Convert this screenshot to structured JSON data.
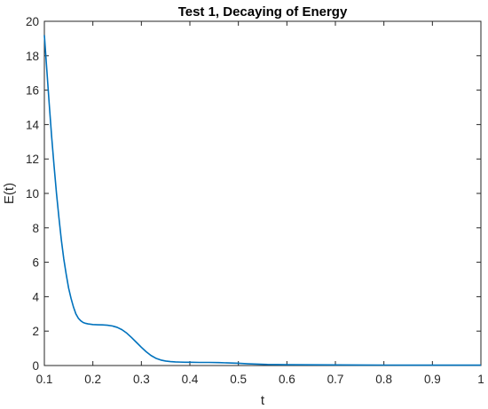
{
  "chart_data": {
    "type": "line",
    "title": "Test 1, Decaying of Energy",
    "xlabel": "t",
    "ylabel": "E(t)",
    "xlim": [
      0.1,
      1
    ],
    "ylim": [
      0,
      20
    ],
    "grid": false,
    "x_ticks": [
      "0.1",
      "0.2",
      "0.3",
      "0.4",
      "0.5",
      "0.6",
      "0.7",
      "0.8",
      "0.9",
      "1"
    ],
    "y_ticks": [
      "0",
      "2",
      "4",
      "6",
      "8",
      "10",
      "12",
      "14",
      "16",
      "18",
      "20"
    ],
    "colors": {
      "line": "#0072BD",
      "axis": "#262626"
    },
    "series": [
      {
        "x": [
          0.1,
          0.105,
          0.11,
          0.115,
          0.12,
          0.125,
          0.13,
          0.135,
          0.14,
          0.145,
          0.15,
          0.155,
          0.16,
          0.165,
          0.17,
          0.175,
          0.18,
          0.185,
          0.19,
          0.195,
          0.2,
          0.21,
          0.22,
          0.23,
          0.24,
          0.25,
          0.26,
          0.27,
          0.28,
          0.29,
          0.3,
          0.31,
          0.32,
          0.33,
          0.34,
          0.35,
          0.36,
          0.37,
          0.38,
          0.39,
          0.4,
          0.42,
          0.44,
          0.46,
          0.48,
          0.5,
          0.52,
          0.54,
          0.56,
          0.6,
          0.65,
          0.7,
          0.75,
          0.8,
          0.85,
          0.9,
          0.95,
          1.0
        ],
        "y": [
          19.2,
          17.2,
          15.2,
          13.3,
          11.6,
          10.0,
          8.6,
          7.3,
          6.2,
          5.3,
          4.5,
          3.9,
          3.4,
          3.0,
          2.75,
          2.6,
          2.5,
          2.45,
          2.42,
          2.4,
          2.38,
          2.37,
          2.36,
          2.34,
          2.3,
          2.22,
          2.08,
          1.88,
          1.62,
          1.34,
          1.06,
          0.8,
          0.58,
          0.42,
          0.32,
          0.26,
          0.23,
          0.21,
          0.2,
          0.19,
          0.19,
          0.18,
          0.18,
          0.17,
          0.15,
          0.13,
          0.1,
          0.08,
          0.06,
          0.05,
          0.04,
          0.035,
          0.03,
          0.025,
          0.02,
          0.02,
          0.02,
          0.02
        ]
      }
    ]
  }
}
